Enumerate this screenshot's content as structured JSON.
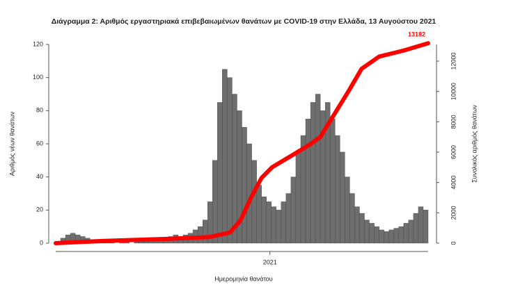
{
  "chart_data": {
    "type": "bar",
    "title": "Διάγραμμα 2: Αριθμός εργαστηριακά επιβεβαιωμένων θανάτων με COVID-19 στην Ελλάδα, 13 Αυγούστου 2021",
    "x_label": "Ημερομηνία θανάτου",
    "y_label": "Αριθμός νέων θανάτων",
    "y2_label": "Συνολικός αριθμός θανάτων",
    "xlim": [
      0,
      532
    ],
    "xticks": [
      {
        "value": 306,
        "label": "2021"
      }
    ],
    "ylim": [
      0,
      120
    ],
    "yticks": [
      0,
      20,
      40,
      60,
      80,
      100,
      120
    ],
    "y2lim": [
      0,
      13100
    ],
    "y2ticks": [
      0,
      2000,
      4000,
      6000,
      8000,
      10000,
      12000
    ],
    "bars": {
      "color": "#6e6e6e",
      "x": [
        0,
        7,
        14,
        21,
        28,
        35,
        42,
        49,
        56,
        63,
        70,
        77,
        84,
        91,
        98,
        105,
        112,
        119,
        126,
        133,
        140,
        147,
        154,
        161,
        168,
        175,
        182,
        189,
        196,
        203,
        210,
        217,
        224,
        231,
        238,
        245,
        252,
        259,
        266,
        273,
        280,
        287,
        294,
        301,
        308,
        315,
        322,
        329,
        336,
        343,
        350,
        357,
        364,
        371,
        378,
        385,
        392,
        399,
        406,
        413,
        420,
        427,
        434,
        441,
        448,
        455,
        462,
        469,
        476,
        483,
        490,
        497,
        504,
        511,
        518,
        525
      ],
      "values": [
        1,
        3,
        5,
        6,
        5,
        4,
        3,
        2,
        2,
        1,
        1,
        1,
        0,
        1,
        1,
        0,
        1,
        1,
        1,
        2,
        2,
        3,
        3,
        4,
        5,
        4,
        5,
        6,
        8,
        10,
        14,
        25,
        50,
        85,
        105,
        100,
        90,
        80,
        70,
        60,
        50,
        35,
        28,
        25,
        22,
        20,
        25,
        30,
        40,
        55,
        65,
        75,
        85,
        90,
        80,
        85,
        75,
        65,
        55,
        40,
        30,
        22,
        18,
        14,
        12,
        10,
        8,
        7,
        8,
        9,
        10,
        12,
        14,
        18,
        22,
        20
      ]
    },
    "cumulative": {
      "color": "#ff0000",
      "axis": "y2",
      "x": [
        0,
        70,
        169,
        219,
        249,
        264,
        279,
        294,
        309,
        338,
        363,
        378,
        398,
        418,
        437,
        462,
        497,
        532
      ],
      "values": [
        0,
        150,
        300,
        400,
        700,
        1500,
        3000,
        4300,
        5000,
        5800,
        6500,
        7000,
        8500,
        10000,
        11500,
        12300,
        12700,
        13182
      ]
    },
    "annotations": [
      {
        "text": "13182",
        "x": 532,
        "y": 13182
      }
    ]
  }
}
